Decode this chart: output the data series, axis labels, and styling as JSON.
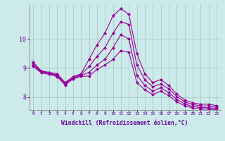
{
  "background_color": "#cceaea",
  "line_color": "#990099",
  "grid_color": "#aacccc",
  "xlabel": "Windchill (Refroidissement éolien,°C)",
  "xlabel_color": "#660099",
  "tick_color": "#660099",
  "ylabel_ticks": [
    8,
    9,
    10
  ],
  "xlim": [
    -0.5,
    23.5
  ],
  "ylim": [
    7.55,
    11.2
  ],
  "xtick_labels": [
    "0",
    "1",
    "2",
    "3",
    "4",
    "5",
    "6",
    "7",
    "8",
    "9",
    "10",
    "11",
    "12",
    "13",
    "14",
    "15",
    "16",
    "17",
    "18",
    "19",
    "20",
    "21",
    "22",
    "23"
  ],
  "line1": [
    9.2,
    8.9,
    8.85,
    8.8,
    8.5,
    8.7,
    8.8,
    9.3,
    9.8,
    10.2,
    10.8,
    11.05,
    10.85,
    9.5,
    8.8,
    8.5,
    8.6,
    8.4,
    8.1,
    7.9,
    7.8,
    7.75,
    7.75,
    7.7
  ],
  "line2": [
    9.15,
    8.88,
    8.83,
    8.76,
    8.47,
    8.68,
    8.77,
    9.05,
    9.4,
    9.7,
    10.2,
    10.6,
    10.5,
    9.1,
    8.6,
    8.35,
    8.45,
    8.28,
    8.02,
    7.83,
    7.74,
    7.69,
    7.69,
    7.64
  ],
  "line3": [
    9.1,
    8.86,
    8.81,
    8.73,
    8.44,
    8.65,
    8.74,
    8.85,
    9.1,
    9.3,
    9.7,
    10.15,
    10.0,
    8.75,
    8.4,
    8.2,
    8.32,
    8.15,
    7.92,
    7.76,
    7.67,
    7.63,
    7.63,
    7.6
  ],
  "line4": [
    9.05,
    8.83,
    8.78,
    8.7,
    8.41,
    8.62,
    8.71,
    8.72,
    8.95,
    9.1,
    9.3,
    9.6,
    9.55,
    8.5,
    8.25,
    8.08,
    8.2,
    8.05,
    7.83,
    7.7,
    7.62,
    7.58,
    7.58,
    7.56
  ],
  "marker": "D",
  "markersize": 2.0,
  "linewidth": 0.8
}
